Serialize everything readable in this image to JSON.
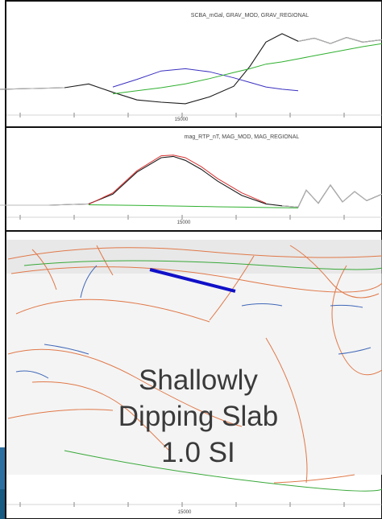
{
  "colors": {
    "observed": "#1a1a1a",
    "observed_outside": "#b8b8b8",
    "model": "#d93030",
    "regional": "#2fb02f",
    "grav_model": "#3a30c0",
    "slab": "#1010c8",
    "fault_orange": "#e07848",
    "fault_blue": "#4068b8",
    "fault_green": "#38a838",
    "sidebar_blue": "#2a6fa0",
    "frame": "#111111"
  },
  "annotation": {
    "line1": "Shallowly",
    "line2": "Dipping Slab",
    "line3": "1.0 SI"
  },
  "chart_data": [
    {
      "type": "line",
      "title": "SCBA_mGal, GRAV_MOD, GRAV_REGIONAL",
      "x_tick_label": "15000",
      "x": [
        0,
        40,
        80,
        110,
        140,
        170,
        200,
        230,
        260,
        290,
        310,
        330,
        350,
        370,
        390,
        410,
        430,
        450,
        474
      ],
      "series": [
        {
          "name": "SCBA_mGal",
          "values": [
            0.6,
            0.7,
            0.8,
            1.3,
            0.2,
            -0.8,
            -1.1,
            -1.3,
            -0.4,
            1.0,
            3.6,
            6.8,
            7.9,
            6.9,
            7.3,
            6.6,
            7.4,
            6.8,
            7.1
          ]
        },
        {
          "name": "GRAV_MOD",
          "values": [
            null,
            null,
            null,
            null,
            0.9,
            1.9,
            3.0,
            3.3,
            2.9,
            2.1,
            1.5,
            0.9,
            0.6,
            0.4,
            null,
            null,
            null,
            null,
            null
          ]
        },
        {
          "name": "GRAV_REGIONAL",
          "values": [
            null,
            null,
            null,
            null,
            0.0,
            0.4,
            0.8,
            1.3,
            2.0,
            2.8,
            3.3,
            3.9,
            4.2,
            4.6,
            5.0,
            5.4,
            5.8,
            6.2,
            6.6
          ]
        }
      ],
      "ylim": [
        -3,
        10
      ]
    },
    {
      "type": "line",
      "title": "mag_RTP_nT, MAG_MOD, MAG_REGIONAL",
      "x_tick_label": "15000",
      "x": [
        0,
        60,
        110,
        140,
        170,
        200,
        215,
        230,
        250,
        270,
        300,
        330,
        350,
        370,
        380,
        395,
        410,
        425,
        440,
        455,
        474
      ],
      "series": [
        {
          "name": "mag_RTP_nT",
          "values": [
            0.5,
            0.5,
            1.5,
            9,
            26,
            37,
            38,
            35,
            28,
            19,
            8,
            1.5,
            0,
            -1,
            12,
            2,
            16,
            3,
            11,
            4,
            9
          ]
        },
        {
          "name": "MAG_MOD",
          "values": [
            null,
            null,
            1.2,
            10,
            27,
            38.5,
            39,
            37,
            30,
            21,
            10,
            2,
            null,
            null,
            null,
            null,
            null,
            null,
            null,
            null,
            null
          ]
        },
        {
          "name": "MAG_REGIONAL",
          "values": [
            null,
            null,
            0.8,
            0.6,
            0.3,
            0.0,
            -0.1,
            -0.3,
            -0.5,
            -0.7,
            -1.0,
            -1.3,
            -1.4,
            -1.6,
            null,
            null,
            null,
            null,
            null,
            null,
            null
          ]
        }
      ],
      "ylim": [
        -10,
        50
      ]
    },
    {
      "type": "line",
      "title": "",
      "x_tick_label": "15000",
      "x": [
        188,
        290
      ],
      "series": [
        {
          "name": "",
          "values": [
            0.37,
            0.64
          ]
        }
      ],
      "ylim": [
        0,
        1
      ]
    }
  ]
}
